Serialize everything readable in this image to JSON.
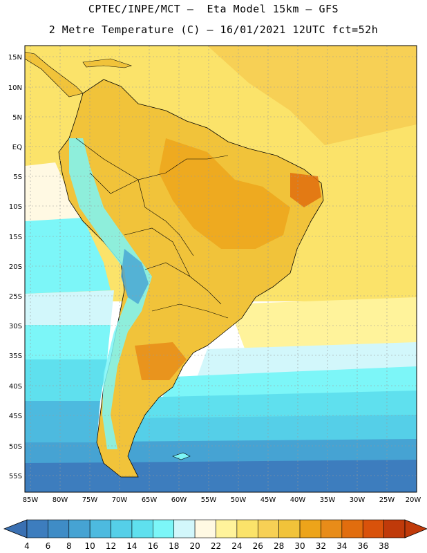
{
  "title_line1": "CPTEC/INPE/MCT –  Eta Model 15km – GFS",
  "title_line2": "2 Metre Temperature (C) – 16/01/2021 12UTC fct=52h",
  "lat_labels": [
    "15N",
    "10N",
    "5N",
    "EQ",
    "5S",
    "10S",
    "15S",
    "20S",
    "25S",
    "30S",
    "35S",
    "40S",
    "45S",
    "50S",
    "55S"
  ],
  "lon_labels": [
    "85W",
    "80W",
    "75W",
    "70W",
    "65W",
    "60W",
    "55W",
    "50W",
    "45W",
    "40W",
    "35W",
    "30W",
    "25W",
    "20W"
  ],
  "colorbar": {
    "labels": [
      "4",
      "6",
      "8",
      "10",
      "12",
      "14",
      "16",
      "18",
      "20",
      "22",
      "24",
      "26",
      "28",
      "30",
      "32",
      "34",
      "36",
      "38"
    ],
    "colors": [
      "#3d7dbe",
      "#3f8cc6",
      "#46a3d3",
      "#4dbadf",
      "#55cfe8",
      "#5fe0ee",
      "#7cf6f8",
      "#d2f7fb",
      "#fff9e3",
      "#fff39b",
      "#fbe36a",
      "#f7d055",
      "#f1c33a",
      "#eda41a",
      "#e88c19",
      "#e16d0e",
      "#d9520b",
      "#c03a0a"
    ],
    "under_color": "#3a70b2",
    "over_color": "#c03a0a"
  }
}
